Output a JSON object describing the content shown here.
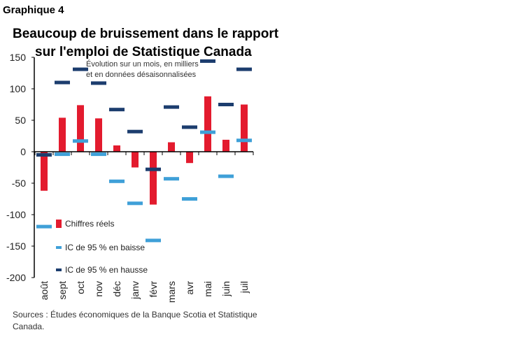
{
  "header": {
    "graph_label": "Graphique 4",
    "title_line1": "Beaucoup de bruissement dans le rapport",
    "title_line2": "sur l'emploi de Statistique Canada",
    "subtitle_line1": "Évolution sur un mois, en milliers",
    "subtitle_line2": "et en données désaisonnalisées"
  },
  "footer": {
    "source_line1": "Sources : Études économiques de la Banque Scotia et Statistique",
    "source_line2": "Canada."
  },
  "colors": {
    "actual": "#e31b2e",
    "ci_low": "#3fa0d8",
    "ci_high": "#1c3d6e",
    "axis": "#000000"
  },
  "chart_data": {
    "type": "bar",
    "categories": [
      "août",
      "sept",
      "oct",
      "nov",
      "déc",
      "janv",
      "févr",
      "mars",
      "avr",
      "mai",
      "juin",
      "juil"
    ],
    "series": [
      {
        "name": "Chiffres réels",
        "kind": "bar",
        "values": [
          -62,
          54,
          74,
          53,
          10,
          -25,
          -84,
          15,
          -18,
          88,
          19,
          75
        ]
      },
      {
        "name": "IC de 95 % en baisse",
        "kind": "marker",
        "values": [
          -119,
          -4,
          17,
          -4,
          -47,
          -82,
          -141,
          -43,
          -75,
          31,
          -39,
          18
        ]
      },
      {
        "name": "IC de 95 % en hausse",
        "kind": "marker",
        "values": [
          -5,
          110,
          131,
          109,
          67,
          32,
          -28,
          71,
          39,
          144,
          75,
          131
        ]
      }
    ],
    "y_ticks": [
      "150",
      "100",
      "50",
      "0",
      "-50",
      "-100",
      "-150",
      "-200"
    ],
    "ylim": [
      -200,
      150
    ],
    "legend_position": "bottom-left, inside plot"
  }
}
